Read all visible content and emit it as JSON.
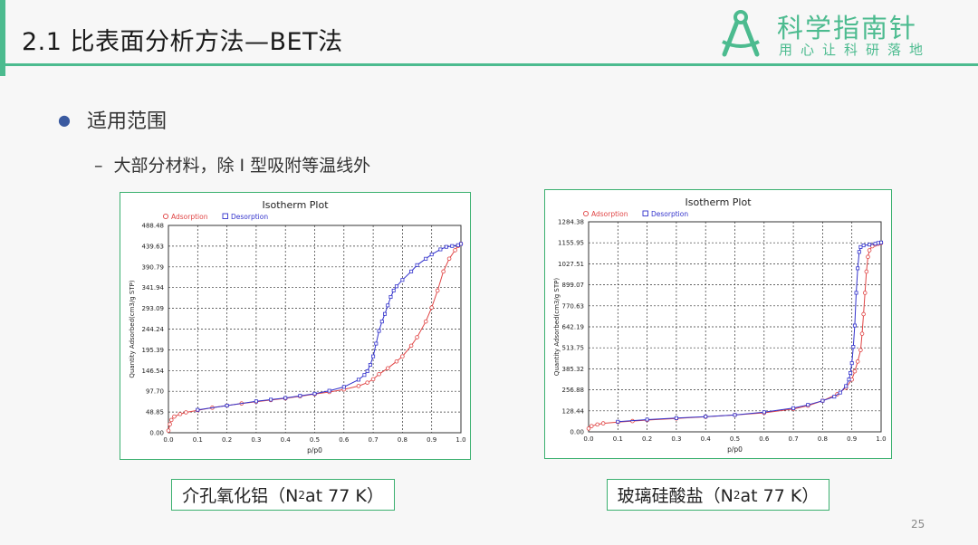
{
  "slide": {
    "title": "2.1 比表面分析方法—BET法",
    "bullet": "适用范围",
    "sub_dash": "–",
    "sub_bullet": "大部分材料，除 I 型吸附等温线外",
    "page_number": "25"
  },
  "logo": {
    "main": "科学指南针",
    "sub": "用心让科研落地"
  },
  "colors": {
    "accent": "#4cbb8f",
    "adsorption": "#e04545",
    "desorption": "#3333cc"
  },
  "captions": [
    {
      "prefix": "介孔氧化铝（N",
      "sub": "2",
      "suffix": " at 77 K）"
    },
    {
      "prefix": "玻璃硅酸盐（N",
      "sub": "2",
      "suffix": " at 77 K）"
    }
  ],
  "chart_data": [
    {
      "type": "line",
      "title": "Isotherm Plot",
      "xlabel": "p/p0",
      "ylabel": "Quantity Adsorbed(cm3/g STP)",
      "legend": [
        "Adsorption",
        "Desorption"
      ],
      "legend_position": "top-left",
      "grid": true,
      "xlim": [
        0,
        1
      ],
      "ylim": [
        0,
        488.48
      ],
      "x_ticks": [
        "0.0",
        "0.1",
        "0.2",
        "0.3",
        "0.4",
        "0.5",
        "0.6",
        "0.7",
        "0.8",
        "0.9",
        "1.0"
      ],
      "y_ticks": [
        "0.00",
        "48.85",
        "97.70",
        "146.54",
        "195.39",
        "244.24",
        "293.09",
        "341.94",
        "390.79",
        "439.63",
        "488.48"
      ],
      "series": [
        {
          "name": "Adsorption",
          "color": "#e04545",
          "x": [
            0.0,
            0.005,
            0.01,
            0.02,
            0.04,
            0.06,
            0.1,
            0.15,
            0.2,
            0.25,
            0.3,
            0.35,
            0.4,
            0.45,
            0.5,
            0.55,
            0.6,
            0.65,
            0.68,
            0.7,
            0.72,
            0.75,
            0.78,
            0.8,
            0.83,
            0.85,
            0.88,
            0.9,
            0.92,
            0.94,
            0.96,
            0.98,
            0.99,
            1.0
          ],
          "y": [
            5,
            20,
            30,
            38,
            44,
            48,
            53,
            59,
            64,
            69,
            73,
            77,
            81,
            86,
            91,
            96,
            102,
            110,
            118,
            126,
            138,
            152,
            168,
            180,
            205,
            225,
            262,
            295,
            335,
            380,
            410,
            430,
            440,
            445
          ]
        },
        {
          "name": "Desorption",
          "color": "#3333cc",
          "x": [
            1.0,
            0.99,
            0.97,
            0.95,
            0.93,
            0.9,
            0.88,
            0.85,
            0.83,
            0.8,
            0.78,
            0.77,
            0.76,
            0.75,
            0.74,
            0.73,
            0.72,
            0.71,
            0.7,
            0.69,
            0.68,
            0.67,
            0.65,
            0.6,
            0.55,
            0.5,
            0.45,
            0.4,
            0.35,
            0.3,
            0.2,
            0.1
          ],
          "y": [
            445,
            442,
            440,
            438,
            432,
            420,
            410,
            395,
            380,
            360,
            345,
            335,
            320,
            300,
            280,
            262,
            240,
            210,
            180,
            160,
            145,
            136,
            125,
            108,
            99,
            92,
            87,
            82,
            78,
            74,
            64,
            54
          ]
        }
      ]
    },
    {
      "type": "line",
      "title": "Isotherm Plot",
      "xlabel": "p/p0",
      "ylabel": "Quantity Adsorbed(cm3/g STP)",
      "legend": [
        "Adsorption",
        "Desorption"
      ],
      "legend_position": "top-left",
      "grid": true,
      "xlim": [
        0,
        1
      ],
      "ylim": [
        0,
        1284.38
      ],
      "x_ticks": [
        "0.0",
        "0.1",
        "0.2",
        "0.3",
        "0.4",
        "0.5",
        "0.6",
        "0.7",
        "0.8",
        "0.9",
        "1.0"
      ],
      "y_ticks": [
        "0.00",
        "128.44",
        "256.88",
        "385.32",
        "513.75",
        "642.19",
        "770.63",
        "899.07",
        "1027.51",
        "1155.95",
        "1284.38"
      ],
      "series": [
        {
          "name": "Adsorption",
          "color": "#e04545",
          "x": [
            0.0,
            0.01,
            0.03,
            0.05,
            0.1,
            0.15,
            0.2,
            0.3,
            0.4,
            0.5,
            0.6,
            0.7,
            0.75,
            0.8,
            0.85,
            0.88,
            0.9,
            0.91,
            0.92,
            0.93,
            0.935,
            0.94,
            0.945,
            0.95,
            0.955,
            0.96,
            0.97,
            0.98,
            0.99,
            1.0
          ],
          "y": [
            20,
            35,
            45,
            52,
            60,
            66,
            72,
            82,
            92,
            103,
            116,
            140,
            160,
            190,
            230,
            270,
            320,
            370,
            430,
            500,
            600,
            720,
            850,
            980,
            1070,
            1110,
            1135,
            1145,
            1150,
            1155
          ]
        },
        {
          "name": "Desorption",
          "color": "#3333cc",
          "x": [
            1.0,
            0.99,
            0.98,
            0.96,
            0.94,
            0.93,
            0.925,
            0.92,
            0.915,
            0.91,
            0.905,
            0.9,
            0.895,
            0.89,
            0.88,
            0.86,
            0.84,
            0.8,
            0.75,
            0.7,
            0.6,
            0.5,
            0.4,
            0.3,
            0.2,
            0.1
          ],
          "y": [
            1158,
            1155,
            1150,
            1145,
            1140,
            1130,
            1100,
            1000,
            850,
            650,
            520,
            420,
            360,
            320,
            280,
            240,
            215,
            190,
            165,
            145,
            120,
            103,
            93,
            84,
            75,
            62
          ]
        }
      ]
    }
  ]
}
